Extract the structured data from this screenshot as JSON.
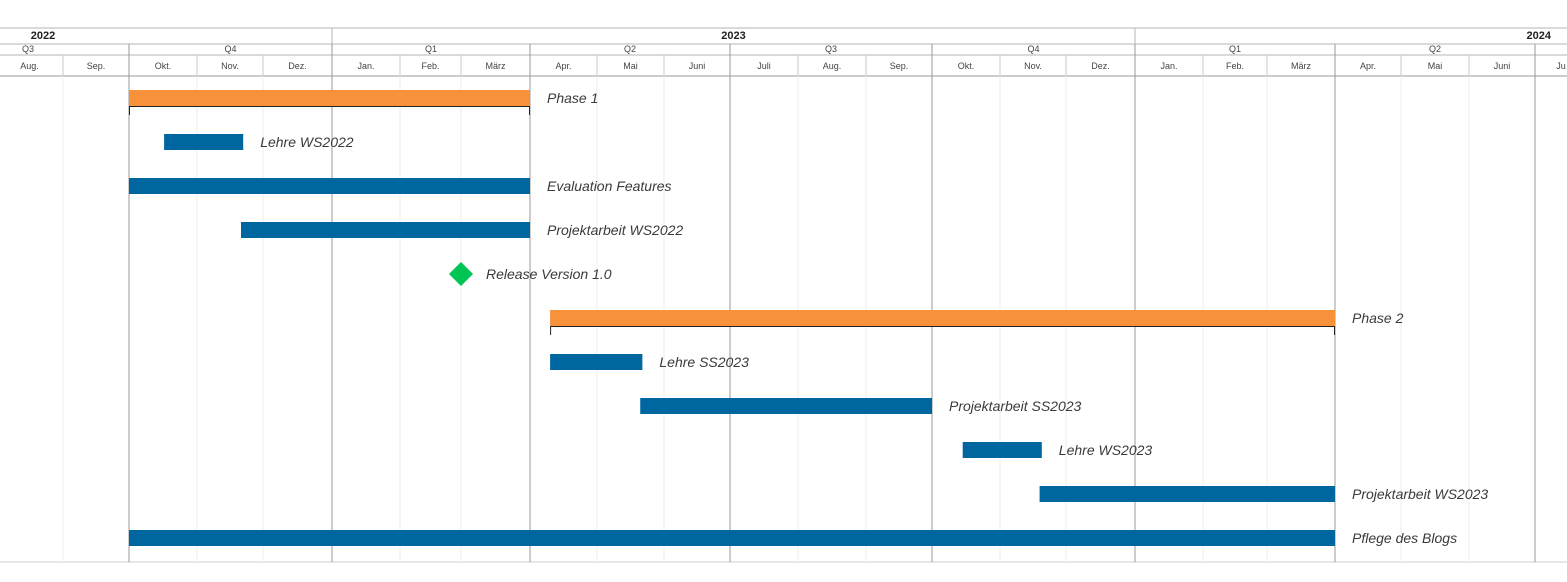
{
  "timeline": {
    "years": [
      {
        "label": "2022",
        "start": 0,
        "end": 5
      },
      {
        "label": "2023",
        "start": 5,
        "end": 17
      },
      {
        "label": "2024",
        "start": 17,
        "end": 24
      }
    ],
    "quarters": [
      {
        "label": "Q3",
        "start": 0,
        "end": 2
      },
      {
        "label": "Q4",
        "start": 2,
        "end": 5
      },
      {
        "label": "Q1",
        "start": 5,
        "end": 8
      },
      {
        "label": "Q2",
        "start": 8,
        "end": 11
      },
      {
        "label": "Q3",
        "start": 11,
        "end": 14
      },
      {
        "label": "Q4",
        "start": 14,
        "end": 17
      },
      {
        "label": "Q1",
        "start": 17,
        "end": 20
      },
      {
        "label": "Q2",
        "start": 20,
        "end": 23
      }
    ],
    "months": [
      "Aug.",
      "Sep.",
      "Okt.",
      "Nov.",
      "Dez.",
      "Jan.",
      "Feb.",
      "März",
      "Apr.",
      "Mai",
      "Juni",
      "Juli",
      "Aug.",
      "Sep.",
      "Okt.",
      "Nov.",
      "Dez.",
      "Jan.",
      "Feb.",
      "März",
      "Apr.",
      "Mai",
      "Juni",
      "Ju"
    ]
  },
  "colors": {
    "phase": "#f7913a",
    "task": "#0066a0",
    "milestone": "#00c454",
    "label": "#3a3a3a",
    "grid_major": "#9a9a9a",
    "grid_minor": "#ececec"
  },
  "chart_data": {
    "type": "gantt",
    "tasks": [
      {
        "label": "Phase 1",
        "kind": "phase",
        "start": "2022-10-01",
        "end": "2023-03-31"
      },
      {
        "label": "Lehre WS2022",
        "kind": "task",
        "start": "2022-10-17",
        "end": "2022-11-22"
      },
      {
        "label": "Evaluation Features",
        "kind": "task",
        "start": "2022-10-01",
        "end": "2023-03-31"
      },
      {
        "label": "Projektarbeit WS2022",
        "kind": "task",
        "start": "2022-11-21",
        "end": "2023-03-31"
      },
      {
        "label": "Release Version 1.0",
        "kind": "milestone",
        "date": "2023-03-01"
      },
      {
        "label": "Phase 2",
        "kind": "phase",
        "start": "2023-04-10",
        "end": "2024-03-31"
      },
      {
        "label": "Lehre SS2023",
        "kind": "task",
        "start": "2023-04-10",
        "end": "2023-05-22"
      },
      {
        "label": "Projektarbeit SS2023",
        "kind": "task",
        "start": "2023-05-21",
        "end": "2023-09-30"
      },
      {
        "label": "Lehre WS2023",
        "kind": "task",
        "start": "2023-10-15",
        "end": "2023-11-20"
      },
      {
        "label": "Projektarbeit WS2023",
        "kind": "task",
        "start": "2023-11-19",
        "end": "2024-03-31"
      },
      {
        "label": "Pflege des Blogs",
        "kind": "task",
        "start": "2022-10-01",
        "end": "2024-03-31"
      }
    ]
  }
}
